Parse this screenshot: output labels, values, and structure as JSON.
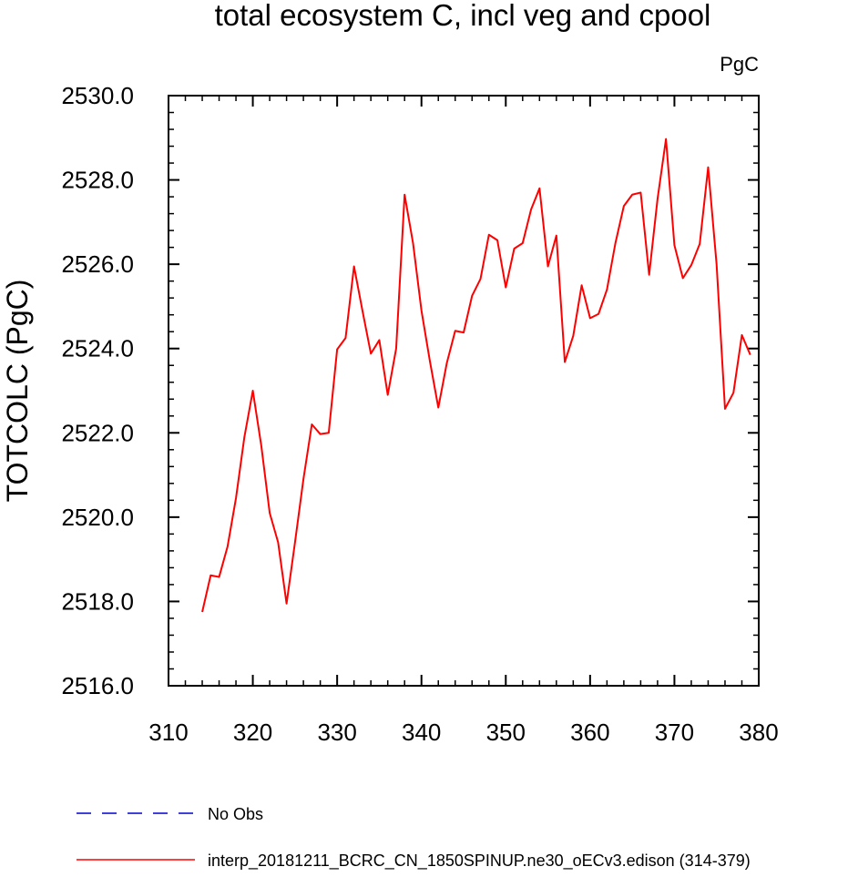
{
  "chart_data": {
    "type": "line",
    "title": "total ecosystem C, incl veg and cpool",
    "units_label": "PgC",
    "xlabel": "",
    "ylabel": "TOTCOLC  (PgC)",
    "xlim": [
      310,
      380
    ],
    "ylim": [
      2516,
      2530
    ],
    "x_major_ticks": [
      310,
      320,
      330,
      340,
      350,
      360,
      370,
      380
    ],
    "x_tick_labels": [
      "310",
      "320",
      "330",
      "340",
      "350",
      "360",
      "370",
      "380"
    ],
    "x_minor_step": 2,
    "y_major_ticks": [
      2516,
      2518,
      2520,
      2522,
      2524,
      2526,
      2528,
      2530
    ],
    "y_tick_labels": [
      "2516.0",
      "2518.0",
      "2520.0",
      "2522.0",
      "2524.0",
      "2526.0",
      "2528.0",
      "2530.0"
    ],
    "y_minor_step": 0.4,
    "grid": false,
    "legend_placement": "bottom",
    "legend": [
      {
        "label": "No Obs",
        "color": "#0000cc",
        "style": "dashed"
      },
      {
        "label": "interp_20181211_BCRC_CN_1850SPINUP.ne30_oECv3.edison (314-379)",
        "color": "#ff0000",
        "style": "solid"
      }
    ],
    "series": [
      {
        "name": "interp_20181211_BCRC_CN_1850SPINUP.ne30_oECv3.edison (314-379)",
        "color": "#ff0000",
        "x": [
          314,
          315,
          316,
          317,
          318,
          319,
          320,
          321,
          322,
          323,
          324,
          325,
          326,
          327,
          328,
          329,
          330,
          331,
          332,
          333,
          334,
          335,
          336,
          337,
          338,
          339,
          340,
          341,
          342,
          343,
          344,
          345,
          346,
          347,
          348,
          349,
          350,
          351,
          352,
          353,
          354,
          355,
          356,
          357,
          358,
          359,
          360,
          361,
          362,
          363,
          364,
          365,
          366,
          367,
          368,
          369,
          370,
          371,
          372,
          373,
          374,
          375,
          376,
          377,
          378,
          379
        ],
        "values": [
          2517.75,
          2518.62,
          2518.58,
          2519.3,
          2520.45,
          2521.9,
          2523.0,
          2521.7,
          2520.1,
          2519.4,
          2517.95,
          2519.4,
          2520.9,
          2522.2,
          2521.97,
          2522.0,
          2523.98,
          2524.25,
          2525.95,
          2524.9,
          2523.88,
          2524.2,
          2522.9,
          2524.0,
          2527.65,
          2526.5,
          2524.9,
          2523.7,
          2522.6,
          2523.65,
          2524.42,
          2524.38,
          2525.25,
          2525.65,
          2526.7,
          2526.57,
          2525.45,
          2526.37,
          2526.5,
          2527.3,
          2527.8,
          2525.95,
          2526.68,
          2523.68,
          2524.3,
          2525.5,
          2524.72,
          2524.82,
          2525.4,
          2526.5,
          2527.38,
          2527.65,
          2527.7,
          2525.75,
          2527.55,
          2528.97,
          2526.45,
          2525.67,
          2525.98,
          2526.48,
          2528.3,
          2526.0,
          2522.57,
          2522.95,
          2524.32,
          2523.85
        ]
      }
    ]
  }
}
